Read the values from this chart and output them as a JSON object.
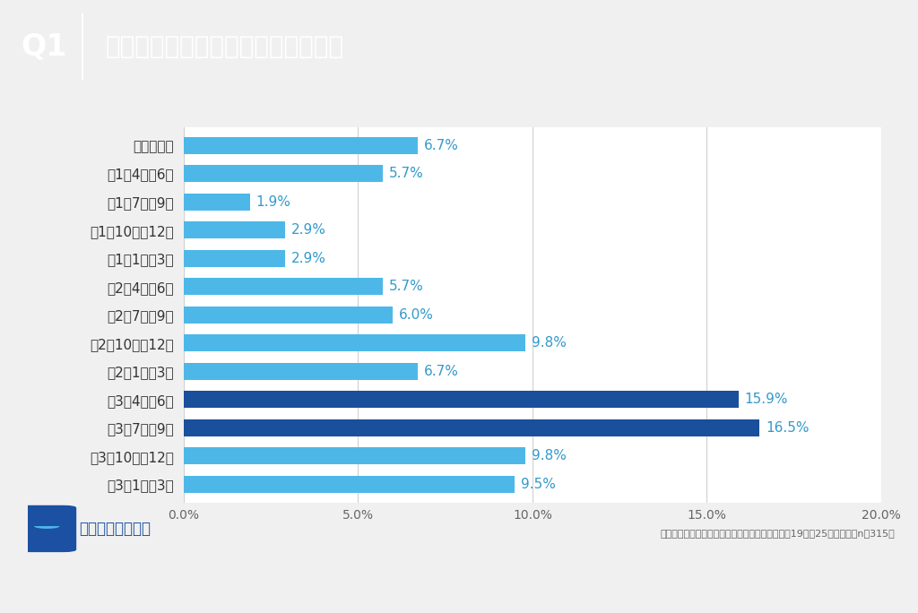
{
  "categories": [
    "高校入学前",
    "高1の4月～6月",
    "高1の7月～9月",
    "高1の10月～12月",
    "高1の1月～3月",
    "高2の4月～6月",
    "高2の7月～9月",
    "高2の10月～12月",
    "高2の1月～3月",
    "高3の4月～6月",
    "高3の7月～9月",
    "高3の10月～12月",
    "高3の1月～3月"
  ],
  "values": [
    6.7,
    5.7,
    1.9,
    2.9,
    2.9,
    5.7,
    6.0,
    9.8,
    6.7,
    15.9,
    16.5,
    9.8,
    9.5
  ],
  "bar_colors": [
    "#4db8e8",
    "#4db8e8",
    "#4db8e8",
    "#4db8e8",
    "#4db8e8",
    "#4db8e8",
    "#4db8e8",
    "#4db8e8",
    "#4db8e8",
    "#1a4f9c",
    "#1a4f9c",
    "#4db8e8",
    "#4db8e8"
  ],
  "labels": [
    "6.7%",
    "5.7%",
    "1.9%",
    "2.9%",
    "2.9%",
    "5.7%",
    "6.0%",
    "9.8%",
    "6.7%",
    "15.9%",
    "16.5%",
    "9.8%",
    "9.5%"
  ],
  "title": "第一志望大学をいつ決めましたか？",
  "q_label": "Q1",
  "header_bg": "#1b50a2",
  "chart_bg": "#ffffff",
  "outer_bg": "#f0f0f0",
  "grid_color": "#d0d0d0",
  "label_color": "#3399cc",
  "xlim": [
    0,
    20
  ],
  "xticks": [
    0,
    5,
    10,
    15,
    20
  ],
  "xtick_labels": [
    "0.0%",
    "5.0%",
    "10.0%",
    "15.0%",
    "20.0%"
  ],
  "footnote": "大学受験で第一志望の国公立大学に現役合格した19歳～25歳の男女（n＝315）",
  "logo_text": "じゅけラボ予備校",
  "bar_height": 0.6,
  "label_fontsize": 11,
  "tick_fontsize": 10,
  "category_fontsize": 11,
  "title_fontsize": 20,
  "q1_fontsize": 24
}
